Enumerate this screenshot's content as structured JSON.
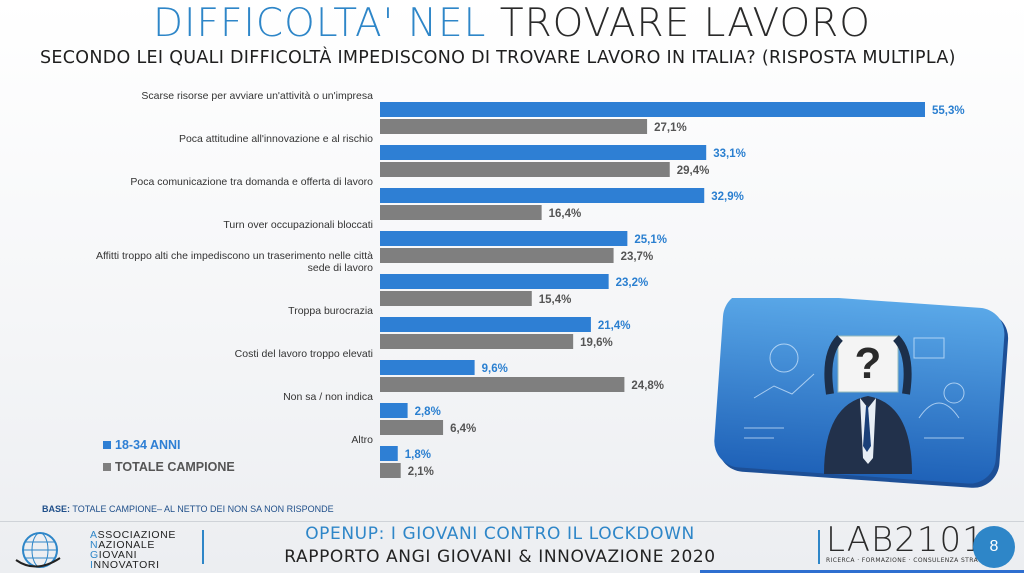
{
  "title": {
    "accent": "DIFFICOLTA' NEL",
    "dark": "TROVARE LAVORO"
  },
  "subtitle": "SECONDO LEI QUALI DIFFICOLTÀ IMPEDISCONO DI TROVARE LAVORO IN ITALIA? (RISPOSTA MULTIPLA)",
  "colors": {
    "blue": "#2e7fd4",
    "grey": "#7f7f7f",
    "accent": "#2e86c8"
  },
  "chart_data": {
    "type": "bar",
    "orientation": "horizontal",
    "categories": [
      [
        "Scarse risorse per avviare un'attività o un'impresa"
      ],
      [
        "Poca attitudine all'innovazione e al rischio"
      ],
      [
        "Poca comunicazione tra domanda e offerta di lavoro"
      ],
      [
        "Turn over occupazionali bloccati"
      ],
      [
        "Affitti troppo alti che impediscono un traserimento nelle città",
        "sede di lavoro"
      ],
      [
        "Troppa burocrazia"
      ],
      [
        "Costi del lavoro troppo elevati"
      ],
      [
        "Non sa / non indica"
      ],
      [
        "Altro"
      ]
    ],
    "series": [
      {
        "name": "18-34 ANNI",
        "values": [
          55.3,
          33.1,
          32.9,
          25.1,
          23.2,
          21.4,
          9.6,
          2.8,
          1.8
        ],
        "labels": [
          "55,3%",
          "33,1%",
          "32,9%",
          "25,1%",
          "23,2%",
          "21,4%",
          "9,6%",
          "2,8%",
          "1,8%"
        ]
      },
      {
        "name": "TOTALE CAMPIONE",
        "values": [
          27.1,
          29.4,
          16.4,
          23.7,
          15.4,
          19.6,
          24.8,
          6.4,
          2.1
        ],
        "labels": [
          "27,1%",
          "29,4%",
          "16,4%",
          "23,7%",
          "15,4%",
          "19,6%",
          "24,8%",
          "6,4%",
          "2,1%"
        ]
      }
    ],
    "xlim": [
      0,
      55.3
    ],
    "grid": false,
    "legend": "bottom-left"
  },
  "base_note": {
    "label": "BASE:",
    "text": "TOTALE CAMPIONE– AL NETTO DEI NON SA NON RISPONDE"
  },
  "footer": {
    "org_lines": [
      {
        "cap": "A",
        "rest": "SSOCIAZIONE"
      },
      {
        "cap": "N",
        "rest": "AZIONALE"
      },
      {
        "cap": "G",
        "rest": "IOVANI"
      },
      {
        "cap": "I",
        "rest": "NNOVATORI"
      }
    ],
    "line1": "OPENUP: I GIOVANI CONTRO IL LOCKDOWN",
    "line2": "RAPPORTO ANGI GIOVANI & INNOVAZIONE 2020",
    "lab_logo": "LAB2101",
    "lab_tagline": "RICERCA · FORMAZIONE · CONSULENZA STRATEGICA",
    "page_number": "8"
  }
}
